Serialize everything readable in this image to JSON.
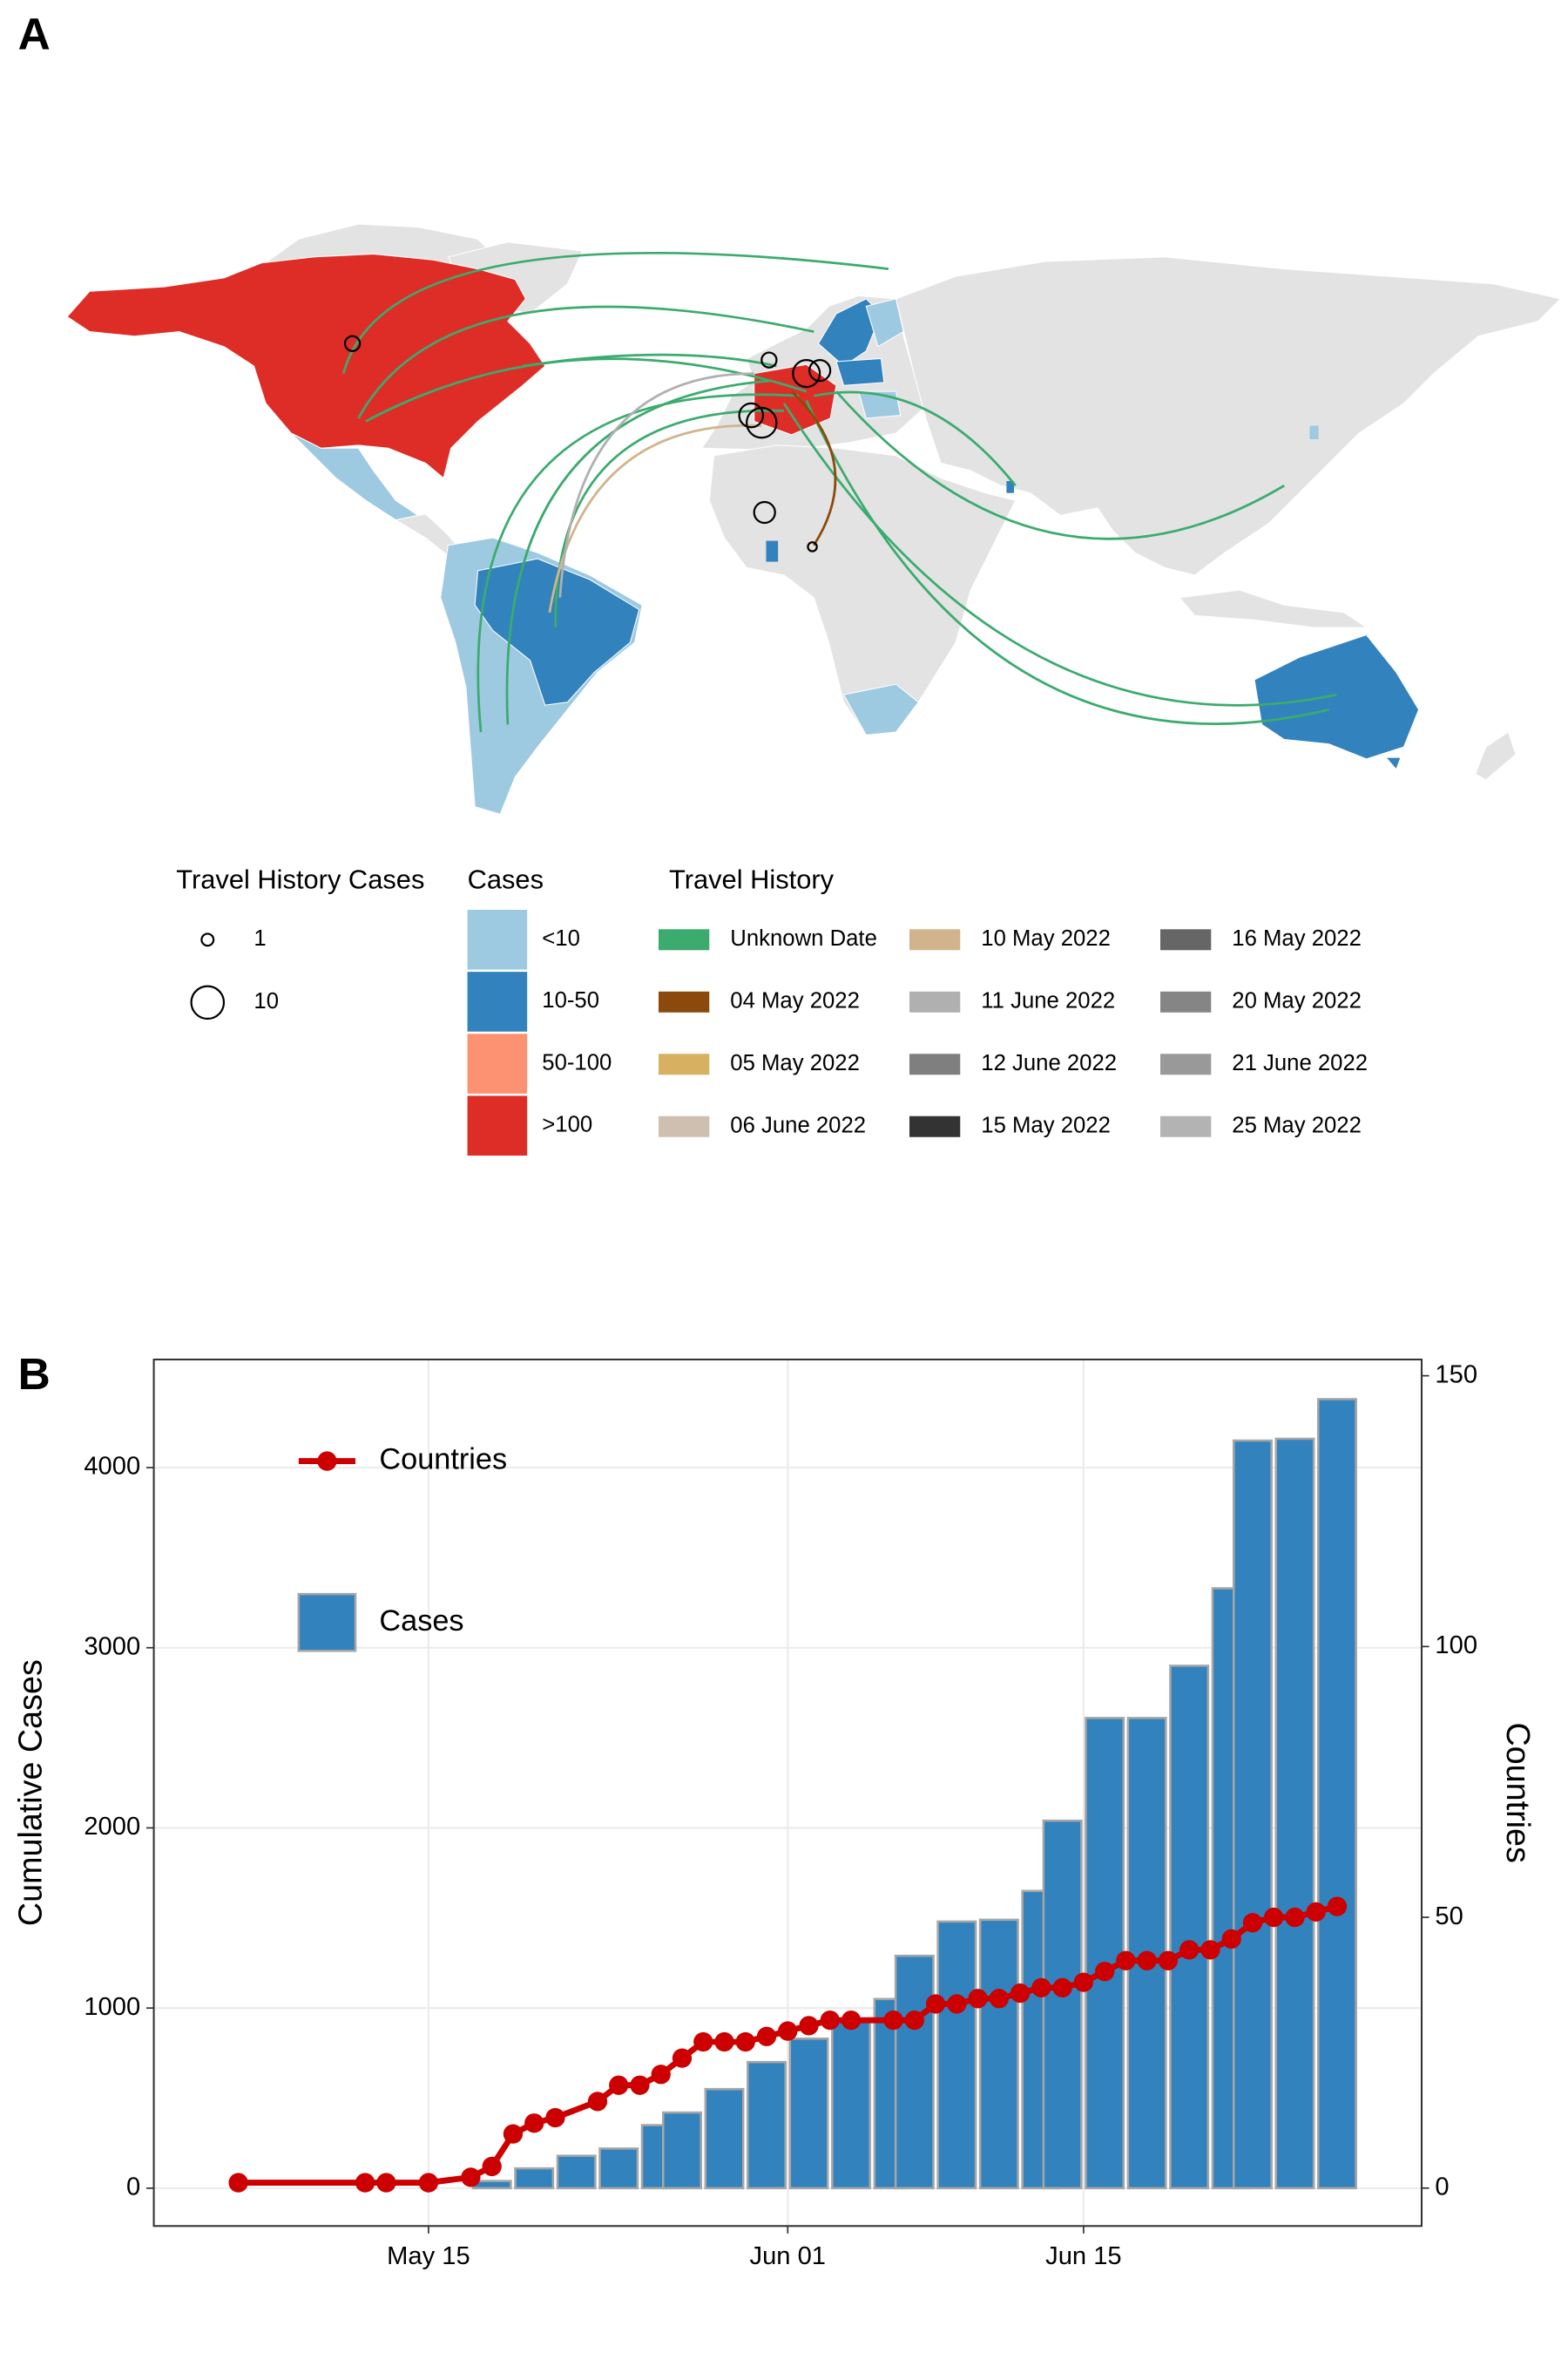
{
  "map": {
    "label": "A",
    "size_legend": {
      "title": "Travel History Cases",
      "entries": [
        1,
        10
      ]
    },
    "cases_legend": {
      "title": "Cases",
      "entries": [
        {
          "label": "<10",
          "color": "#9ecae1"
        },
        {
          "label": "10-50",
          "color": "#3182bd"
        },
        {
          "label": "50-100",
          "color": "#fc9272"
        },
        {
          "label": ">100",
          "color": "#de2d26"
        }
      ]
    },
    "travel_legend": {
      "title": "Travel History",
      "entries": [
        {
          "label": "Unknown Date",
          "color": "#3bab6e"
        },
        {
          "label": "04 May 2022",
          "color": "#8b4a0b"
        },
        {
          "label": "05 May 2022",
          "color": "#d8b062"
        },
        {
          "label": "06 June 2022",
          "color": "#cfbfb0"
        },
        {
          "label": "10 May 2022",
          "color": "#d2b48c"
        },
        {
          "label": "11 June 2022",
          "color": "#b0b0b0"
        },
        {
          "label": "12 June 2022",
          "color": "#7f7f7f"
        },
        {
          "label": "15 May 2022",
          "color": "#333333"
        },
        {
          "label": "16 May 2022",
          "color": "#666666"
        },
        {
          "label": "20 May 2022",
          "color": "#858585"
        },
        {
          "label": "21 June 2022",
          "color": "#999999"
        },
        {
          "label": "25 May 2022",
          "color": "#b3b3b3"
        }
      ]
    }
  },
  "chart_data": {
    "type": "combo",
    "panel_label": "B",
    "xlim": [
      "05-02",
      "07-01"
    ],
    "xticks": [
      {
        "value": "05-15",
        "label": "May 15"
      },
      {
        "value": "06-01",
        "label": "Jun 01"
      },
      {
        "value": "06-15",
        "label": "Jun 15"
      }
    ],
    "ylabel": "Cumulative Cases",
    "ylim": [
      -210,
      4600
    ],
    "yticks": [
      0,
      1000,
      2000,
      3000,
      4000
    ],
    "y2label": "Countries",
    "y2lim": [
      -7,
      153
    ],
    "y2ticks": [
      0,
      50,
      100,
      150
    ],
    "grid": true,
    "legend": "top-left",
    "series": [
      {
        "name": "Countries",
        "type": "line",
        "axis": "y2",
        "color": "#cc0000",
        "x": [
          "05-06",
          "05-12",
          "05-13",
          "05-15",
          "05-17",
          "05-18",
          "05-19",
          "05-20",
          "05-21",
          "05-23",
          "05-24",
          "05-25",
          "05-26",
          "05-27",
          "05-28",
          "05-29",
          "05-30",
          "05-31",
          "06-01",
          "06-02",
          "06-03",
          "06-04",
          "06-06",
          "06-07",
          "06-08",
          "06-09",
          "06-10",
          "06-11",
          "06-12",
          "06-13",
          "06-14",
          "06-15",
          "06-16",
          "06-17",
          "06-18",
          "06-19",
          "06-20",
          "06-21",
          "06-22",
          "06-23",
          "06-24",
          "06-25",
          "06-26",
          "06-27"
        ],
        "values": [
          1,
          1,
          1,
          1,
          2,
          4,
          10,
          12,
          13,
          16,
          19,
          19,
          21,
          24,
          27,
          27,
          27,
          28,
          29,
          30,
          31,
          31,
          31,
          31,
          34,
          34,
          35,
          35,
          36,
          37,
          37,
          38,
          40,
          42,
          42,
          42,
          44,
          44,
          46,
          49,
          50,
          50,
          51,
          52
        ]
      },
      {
        "name": "Cases",
        "type": "bar",
        "color": "#3182bd",
        "x": [
          "05-18",
          "05-20",
          "05-22",
          "05-24",
          "05-26",
          "05-27",
          "05-29",
          "05-31",
          "06-02",
          "06-04",
          "06-06",
          "06-07",
          "06-09",
          "06-11",
          "06-13",
          "06-14",
          "06-16",
          "06-18",
          "06-20",
          "06-22",
          "06-23",
          "06-25",
          "06-27"
        ],
        "values": [
          40,
          110,
          180,
          220,
          350,
          420,
          550,
          700,
          830,
          940,
          1050,
          1290,
          1480,
          1490,
          1650,
          2040,
          2610,
          2610,
          2900,
          3330,
          4150,
          4160,
          4380
        ]
      }
    ]
  }
}
